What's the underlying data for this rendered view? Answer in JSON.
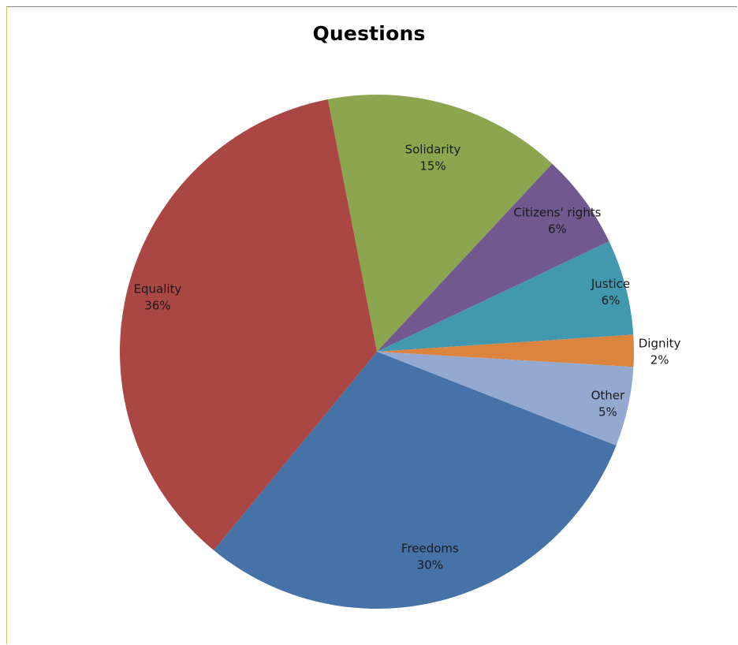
{
  "chart_data": {
    "type": "pie",
    "title": "Questions",
    "slices": [
      {
        "label": "Solidarity",
        "value": 15,
        "percent_label": "15%",
        "color": "#8BA64E"
      },
      {
        "label": "Citizens' rights",
        "value": 6,
        "percent_label": "6%",
        "color": "#71588F"
      },
      {
        "label": "Justice",
        "value": 6,
        "percent_label": "6%",
        "color": "#4198AF"
      },
      {
        "label": "Dignity",
        "value": 2,
        "percent_label": "2%",
        "color": "#DB843D"
      },
      {
        "label": "Other",
        "value": 5,
        "percent_label": "5%",
        "color": "#93A9CF"
      },
      {
        "label": "Freedoms",
        "value": 30,
        "percent_label": "30%",
        "color": "#4572A7"
      },
      {
        "label": "Equality",
        "value": 36,
        "percent_label": "36%",
        "color": "#AA4643"
      }
    ],
    "legend": "none",
    "data_labels": "category and percentage"
  }
}
